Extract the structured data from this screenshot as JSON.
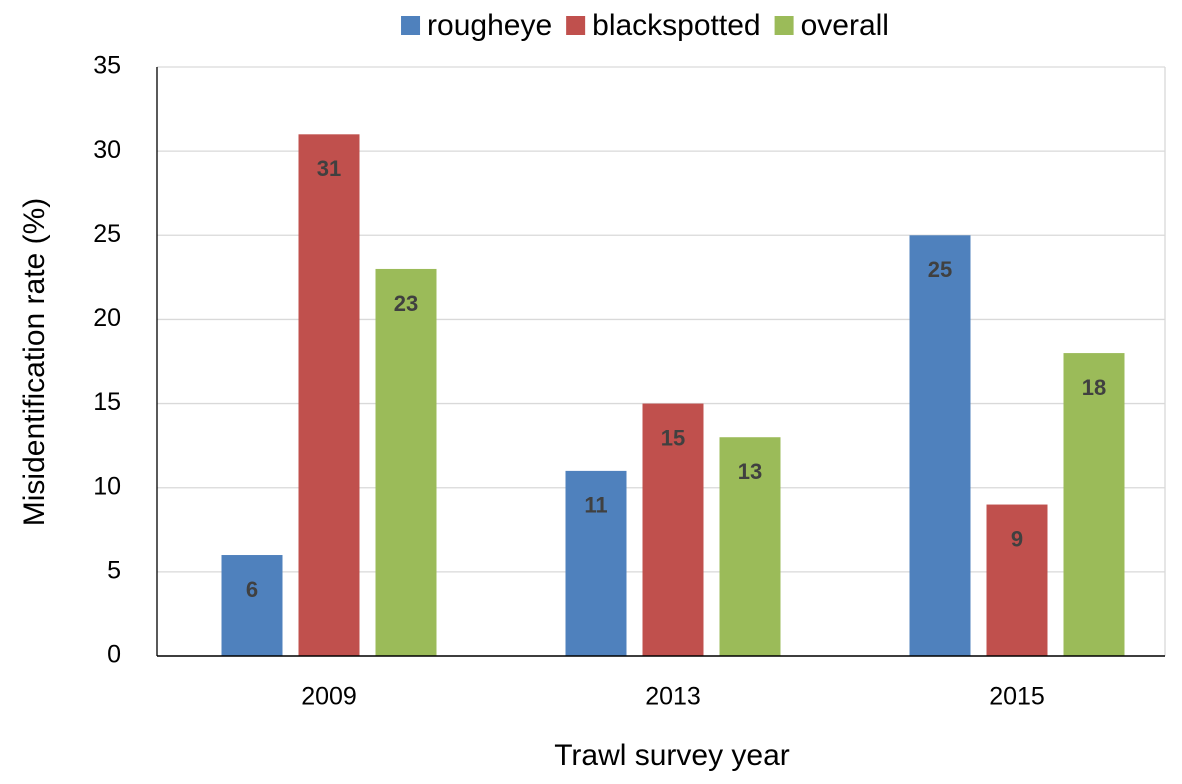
{
  "chart_data": {
    "type": "bar",
    "x_label": "Trawl survey year",
    "y_label": "Misidentification rate (%)",
    "categories": [
      "2009",
      "2013",
      "2015"
    ],
    "series": [
      {
        "name": "rougheye",
        "color": "#4f81bd",
        "values": [
          6,
          11,
          25
        ]
      },
      {
        "name": "blackspotted",
        "color": "#c0504d",
        "values": [
          31,
          15,
          9
        ]
      },
      {
        "name": "overall",
        "color": "#9bbb59",
        "values": [
          23,
          13,
          18
        ]
      }
    ],
    "ylim": [
      0,
      35
    ],
    "yticks": [
      0,
      5,
      10,
      15,
      20,
      25,
      30,
      35
    ],
    "grid": true,
    "legend": "top"
  }
}
